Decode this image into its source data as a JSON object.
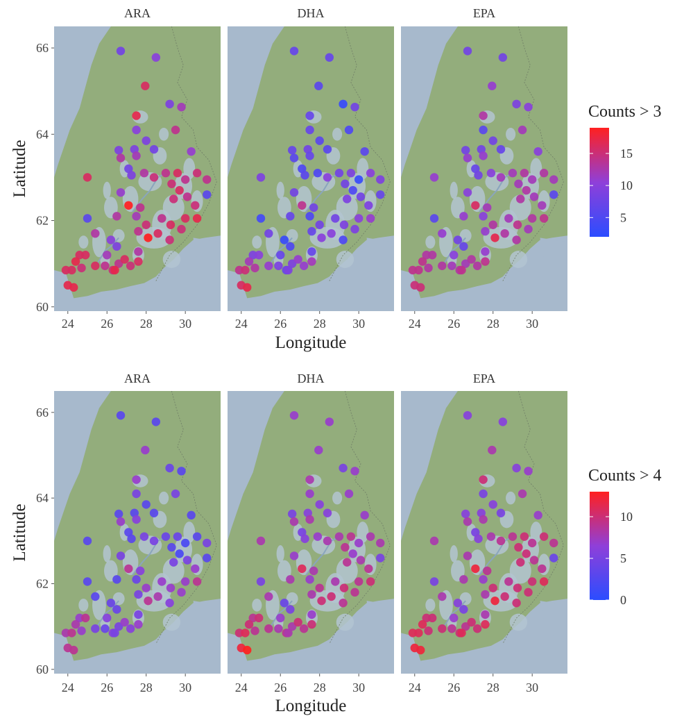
{
  "xlabel": "Longitude",
  "ylabel": "Latitude",
  "panels": [
    "ARA",
    "DHA",
    "EPA"
  ],
  "xticks": [
    24,
    26,
    28,
    30
  ],
  "yticks": [
    60,
    62,
    64,
    66
  ],
  "xlim": [
    23.3,
    31.8
  ],
  "ylim": [
    59.9,
    66.5
  ],
  "gradient": {
    "low": "#2b4dff",
    "mid": "#8f3fd9",
    "high": "#ff2020"
  },
  "map": {
    "sea": "#a7b9cc",
    "land": "#93ad7c",
    "lakes": "#b3c4d1",
    "river_color": "#8aa5bd",
    "border_color": "#6f7d66"
  },
  "sites": [
    [
      26.7,
      65.93
    ],
    [
      28.5,
      65.78
    ],
    [
      27.95,
      65.12
    ],
    [
      29.2,
      64.7
    ],
    [
      29.8,
      64.63
    ],
    [
      27.5,
      64.43
    ],
    [
      27.5,
      64.1
    ],
    [
      29.5,
      64.1
    ],
    [
      28.0,
      63.85
    ],
    [
      27.4,
      63.65
    ],
    [
      26.6,
      63.63
    ],
    [
      28.4,
      63.65
    ],
    [
      30.3,
      63.6
    ],
    [
      26.7,
      63.45
    ],
    [
      27.1,
      63.2
    ],
    [
      27.25,
      63.05
    ],
    [
      27.5,
      63.5
    ],
    [
      27.9,
      63.1
    ],
    [
      28.4,
      63.0
    ],
    [
      29.0,
      63.1
    ],
    [
      29.6,
      63.1
    ],
    [
      30.0,
      62.95
    ],
    [
      30.6,
      63.1
    ],
    [
      31.1,
      62.95
    ],
    [
      29.3,
      62.85
    ],
    [
      29.7,
      62.7
    ],
    [
      30.1,
      62.55
    ],
    [
      30.5,
      62.35
    ],
    [
      31.1,
      62.6
    ],
    [
      25.0,
      63.0
    ],
    [
      26.7,
      62.65
    ],
    [
      27.1,
      62.35
    ],
    [
      27.7,
      62.3
    ],
    [
      29.4,
      62.5
    ],
    [
      30.0,
      62.05
    ],
    [
      30.6,
      62.05
    ],
    [
      25.0,
      62.05
    ],
    [
      26.5,
      62.1
    ],
    [
      27.5,
      62.1
    ],
    [
      28.0,
      61.9
    ],
    [
      28.8,
      62.05
    ],
    [
      29.25,
      61.9
    ],
    [
      29.8,
      61.8
    ],
    [
      27.6,
      61.75
    ],
    [
      28.1,
      61.6
    ],
    [
      28.6,
      61.7
    ],
    [
      29.2,
      61.55
    ],
    [
      25.4,
      61.7
    ],
    [
      26.2,
      61.55
    ],
    [
      26.5,
      61.4
    ],
    [
      26.0,
      61.2
    ],
    [
      27.6,
      61.28
    ],
    [
      24.6,
      61.2
    ],
    [
      24.9,
      61.2
    ],
    [
      25.4,
      60.95
    ],
    [
      25.9,
      60.95
    ],
    [
      26.3,
      60.85
    ],
    [
      26.6,
      61.0
    ],
    [
      26.9,
      61.1
    ],
    [
      27.2,
      60.95
    ],
    [
      27.6,
      61.05
    ],
    [
      24.4,
      61.05
    ],
    [
      24.7,
      60.9
    ],
    [
      23.9,
      60.85
    ],
    [
      24.2,
      60.85
    ],
    [
      24.0,
      60.5
    ],
    [
      24.3,
      60.45
    ],
    [
      26.4,
      60.85
    ]
  ],
  "chart_data": [
    {
      "type": "scatter",
      "title": "ARA",
      "xlabel": "Longitude",
      "ylabel": "Latitude",
      "xlim": [
        23.3,
        31.8
      ],
      "ylim": [
        59.9,
        66.5
      ],
      "grid": false,
      "color_label": "Counts > 3",
      "color_range": [
        2,
        19
      ],
      "values": [
        8,
        10,
        16,
        9,
        12,
        17,
        10,
        14,
        9,
        9,
        9,
        8,
        11,
        13,
        8,
        9,
        12,
        13,
        15,
        14,
        16,
        14,
        15,
        14,
        15,
        16,
        14,
        15,
        6,
        16,
        11,
        19,
        14,
        15,
        16,
        17,
        6,
        13,
        12,
        15,
        14,
        16,
        15,
        14,
        19,
        16,
        15,
        13,
        10,
        9,
        12,
        13,
        16,
        16,
        16,
        14,
        15,
        14,
        16,
        15,
        16,
        17,
        15,
        16,
        16,
        17,
        17,
        17
      ]
    },
    {
      "type": "scatter",
      "title": "DHA",
      "xlabel": "Longitude",
      "ylabel": "Latitude",
      "xlim": [
        23.3,
        31.8
      ],
      "ylim": [
        59.9,
        66.5
      ],
      "grid": false,
      "color_label": "Counts > 3",
      "color_range": [
        2,
        19
      ],
      "values": [
        7,
        7,
        6,
        3,
        8,
        7,
        7,
        5,
        6,
        8,
        7,
        6,
        6,
        6,
        5,
        6,
        7,
        5,
        10,
        8,
        9,
        3,
        10,
        9,
        8,
        5,
        8,
        9,
        7,
        9,
        8,
        14,
        8,
        9,
        10,
        11,
        4,
        7,
        5,
        8,
        8,
        9,
        9,
        7,
        10,
        10,
        5,
        8,
        3,
        5,
        7,
        7,
        9,
        10,
        11,
        9,
        7,
        9,
        11,
        11,
        12,
        12,
        13,
        14,
        15,
        16,
        17,
        9
      ]
    },
    {
      "type": "scatter",
      "title": "EPA",
      "xlabel": "Longitude",
      "ylabel": "Latitude",
      "xlim": [
        23.3,
        31.8
      ],
      "ylim": [
        59.9,
        66.5
      ],
      "grid": false,
      "color_label": "Counts > 3",
      "color_range": [
        2,
        19
      ],
      "values": [
        8,
        8,
        11,
        9,
        10,
        13,
        6,
        12,
        8,
        8,
        8,
        7,
        10,
        11,
        7,
        8,
        11,
        10,
        12,
        12,
        13,
        12,
        13,
        12,
        12,
        13,
        12,
        12,
        6,
        11,
        10,
        16,
        12,
        13,
        13,
        14,
        6,
        11,
        10,
        13,
        12,
        14,
        12,
        11,
        17,
        13,
        13,
        11,
        8,
        7,
        10,
        11,
        13,
        13,
        13,
        12,
        13,
        12,
        13,
        13,
        14,
        14,
        13,
        14,
        14,
        15,
        15,
        14
      ]
    },
    {
      "type": "scatter",
      "title": "ARA",
      "xlabel": "Longitude",
      "ylabel": "Latitude",
      "xlim": [
        23.3,
        31.8
      ],
      "ylim": [
        59.9,
        66.5
      ],
      "grid": false,
      "color_label": "Counts > 4",
      "color_range": [
        0,
        13
      ],
      "values": [
        3,
        3,
        7,
        4,
        3,
        7,
        5,
        5,
        3,
        3,
        3,
        3,
        3,
        7,
        3,
        3,
        6,
        5,
        5,
        4,
        4,
        2,
        3,
        5,
        3,
        2,
        5,
        7,
        3,
        3,
        5,
        9,
        6,
        5,
        7,
        9,
        3,
        3,
        4,
        7,
        7,
        7,
        7,
        5,
        9,
        8,
        6,
        3,
        4,
        4,
        6,
        5,
        7,
        9,
        5,
        4,
        6,
        5,
        7,
        6,
        7,
        8,
        7,
        8,
        9,
        9,
        9,
        5
      ]
    },
    {
      "type": "scatter",
      "title": "DHA",
      "xlabel": "Longitude",
      "ylabel": "Latitude",
      "xlim": [
        23.3,
        31.8
      ],
      "ylim": [
        59.9,
        66.5
      ],
      "grid": false,
      "color_label": "Counts > 4",
      "color_range": [
        0,
        13
      ],
      "values": [
        7,
        7,
        7,
        5,
        7,
        8,
        7,
        7,
        6,
        6,
        5,
        6,
        7,
        8,
        5,
        6,
        8,
        7,
        8,
        8,
        9,
        7,
        8,
        8,
        9,
        7,
        8,
        9,
        5,
        8,
        7,
        11,
        8,
        9,
        9,
        10,
        5,
        8,
        7,
        9,
        8,
        10,
        9,
        8,
        10,
        10,
        9,
        8,
        4,
        5,
        7,
        7,
        9,
        10,
        9,
        8,
        9,
        8,
        10,
        9,
        10,
        10,
        9,
        10,
        11,
        12,
        13,
        8
      ]
    },
    {
      "type": "scatter",
      "title": "EPA",
      "xlabel": "Longitude",
      "ylabel": "Latitude",
      "xlim": [
        23.3,
        31.8
      ],
      "ylim": [
        59.9,
        66.5
      ],
      "grid": false,
      "color_label": "Counts > 4",
      "color_range": [
        0,
        13
      ],
      "values": [
        6,
        6,
        8,
        6,
        7,
        10,
        5,
        8,
        6,
        6,
        6,
        5,
        7,
        8,
        5,
        6,
        8,
        8,
        9,
        9,
        10,
        9,
        10,
        9,
        10,
        10,
        9,
        9,
        4,
        8,
        8,
        12,
        9,
        10,
        10,
        11,
        5,
        8,
        7,
        10,
        9,
        10,
        10,
        8,
        12,
        10,
        10,
        8,
        6,
        5,
        7,
        8,
        10,
        10,
        10,
        9,
        10,
        9,
        10,
        10,
        11,
        11,
        10,
        11,
        11,
        12,
        12,
        11
      ]
    }
  ],
  "legends": [
    {
      "title": "Counts > 3",
      "range": [
        2,
        19
      ],
      "ticks": [
        5,
        10,
        15
      ]
    },
    {
      "title": "Counts > 4",
      "range": [
        0,
        13
      ],
      "ticks": [
        0,
        5,
        10
      ]
    }
  ]
}
